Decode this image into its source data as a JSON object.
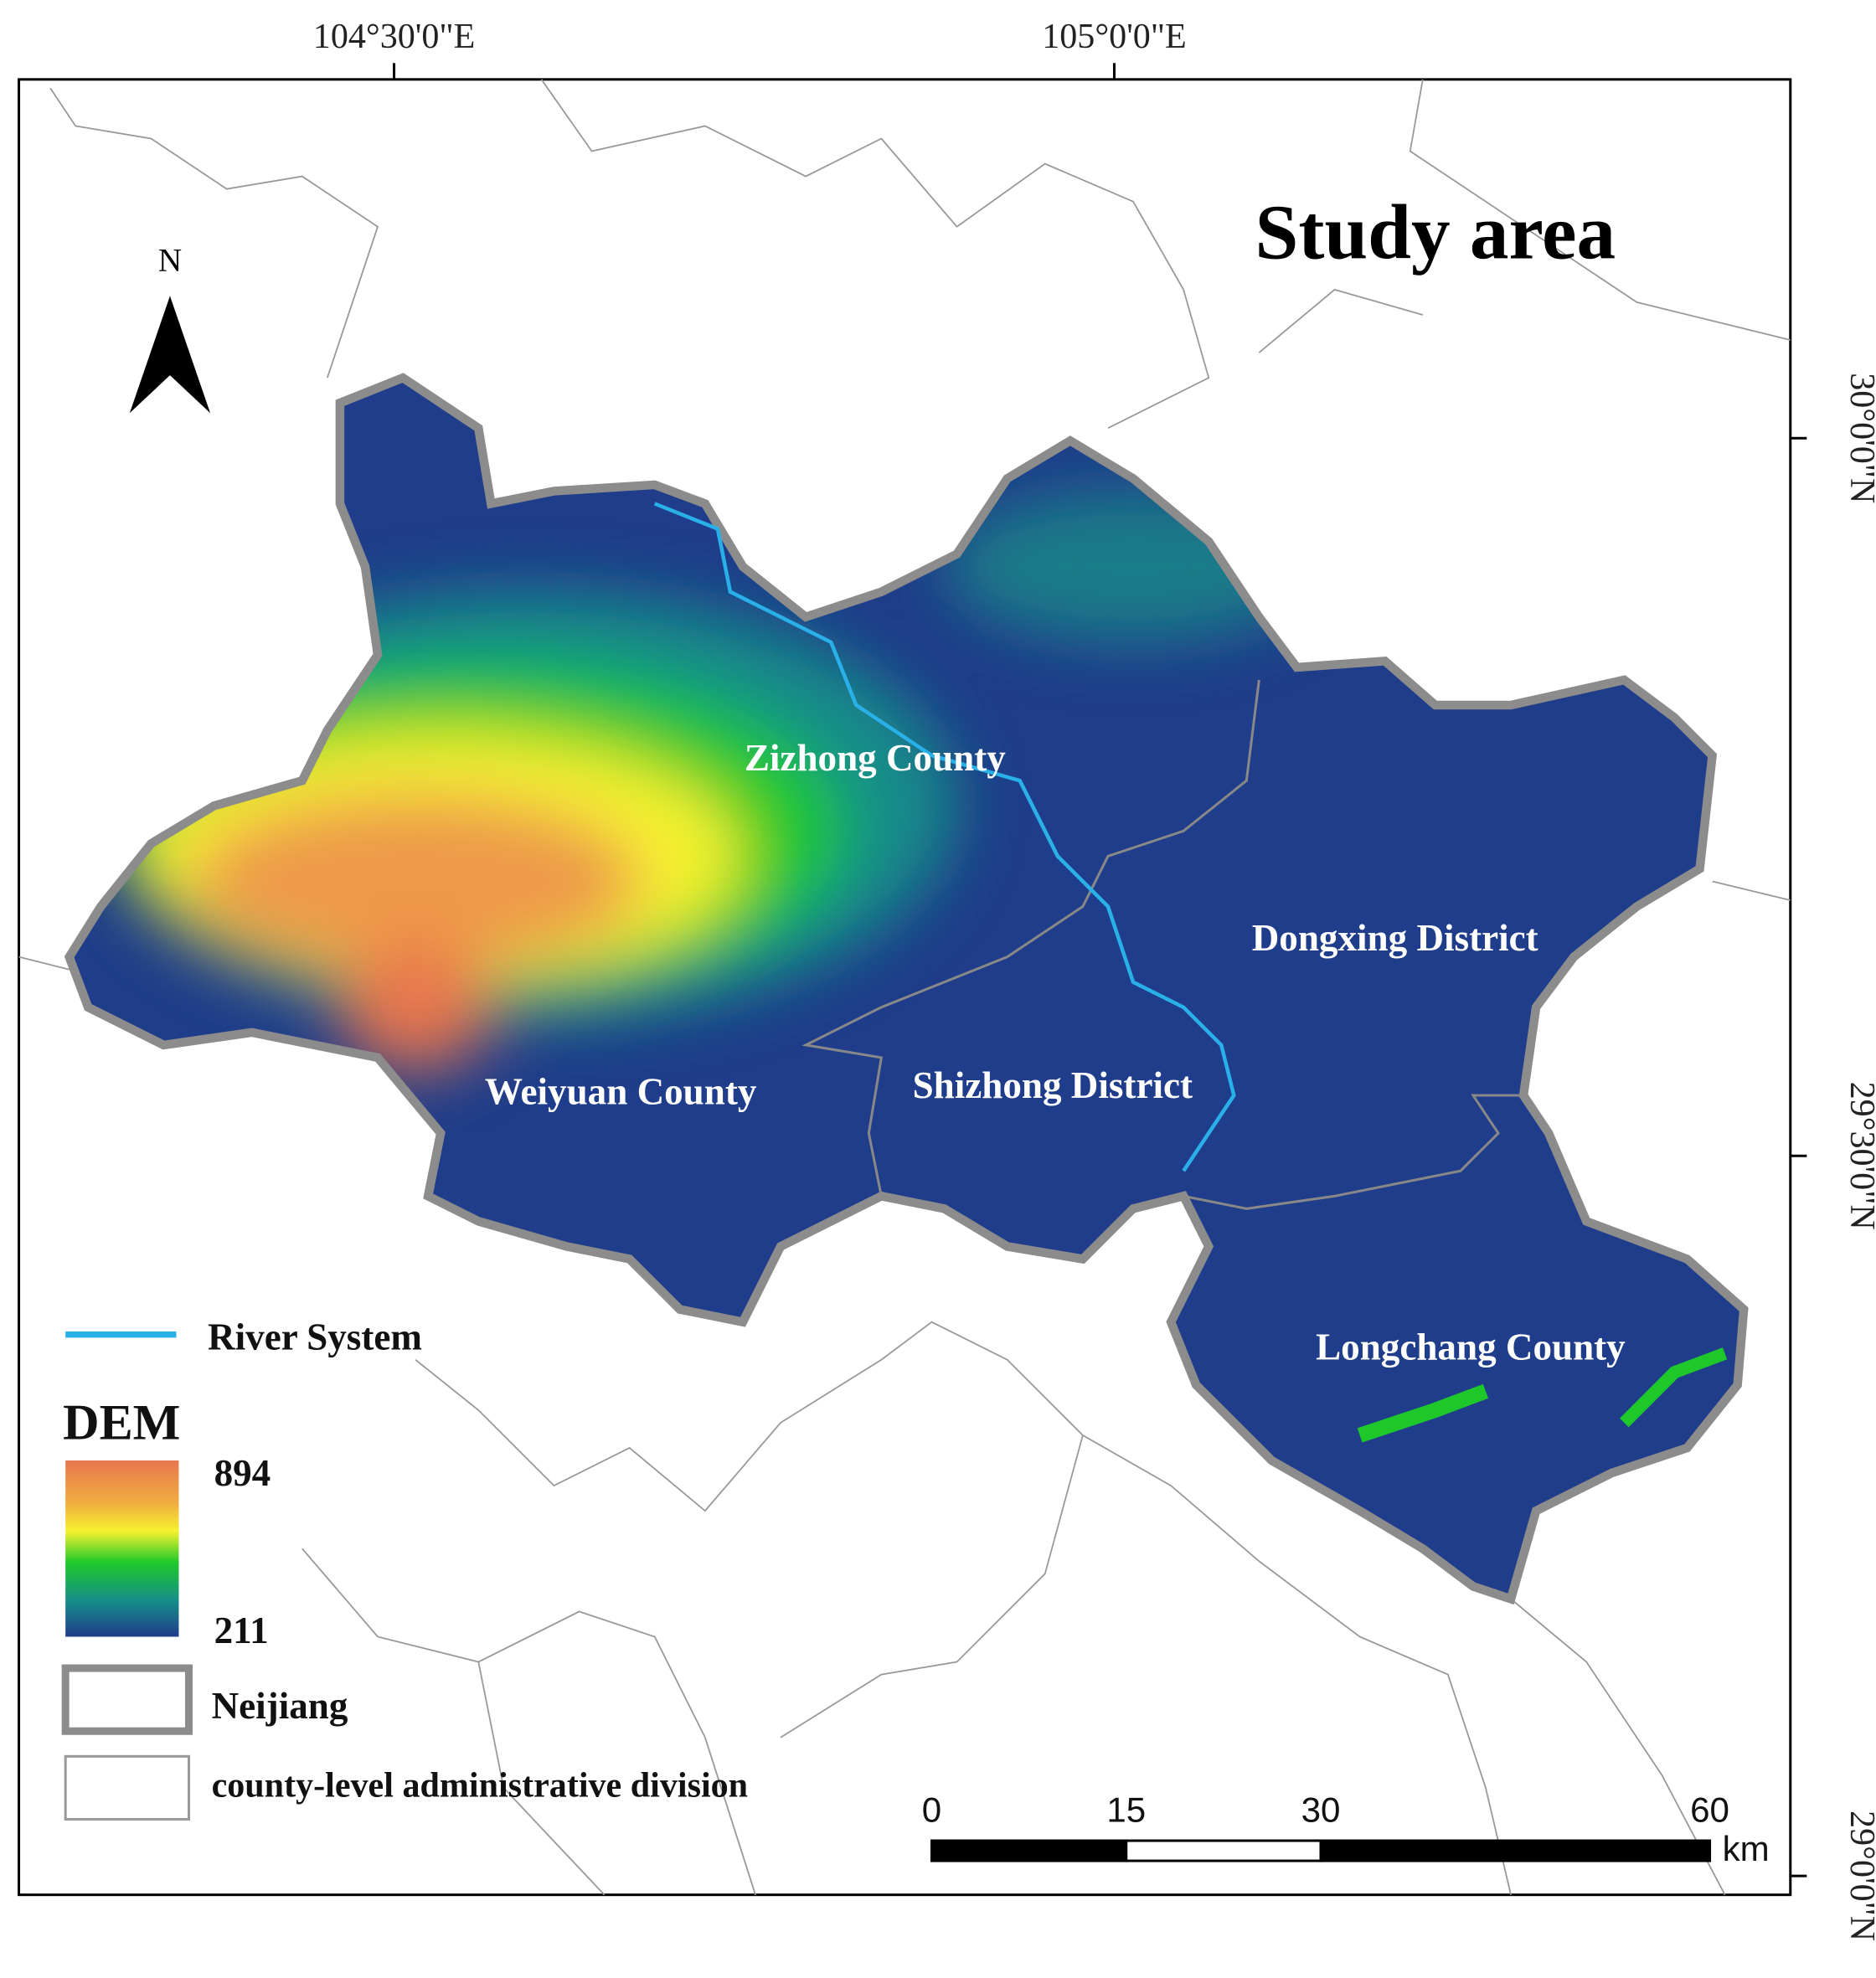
{
  "title": "Study area",
  "north": "N",
  "longitudes": [
    "104°30'0\"E",
    "105°0'0\"E"
  ],
  "latitudes": [
    "30°0'0\"N",
    "29°30'0\"N",
    "29°0'0\"N"
  ],
  "districts": [
    "Zizhong County",
    "Dongxing District",
    "Weiyuan County",
    "Shizhong District",
    "Longchang County"
  ],
  "legend": {
    "river": "River System",
    "dem_title": "DEM",
    "dem_max": 894,
    "dem_min": 211,
    "boundary": "Neijiang",
    "county": "county-level administrative division"
  },
  "scale_bar": {
    "ticks": [
      0,
      15,
      30,
      60
    ],
    "unit": "km"
  }
}
